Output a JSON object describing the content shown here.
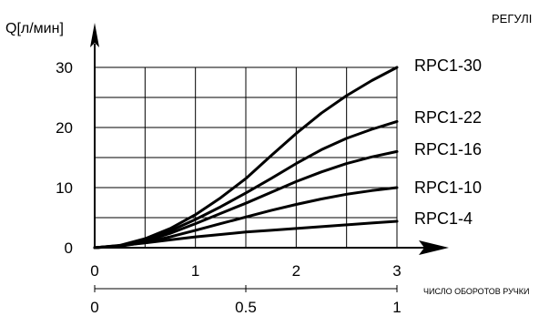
{
  "chart_data": {
    "type": "line",
    "title": "",
    "corner_text": "РЕГУЛІ",
    "ylabel": "Q[л/мин]",
    "xlabel": "ЧИСЛО ОБОРОТОВ РУЧКИ",
    "xlim": [
      0,
      3
    ],
    "ylim": [
      0,
      30
    ],
    "y_ticks": [
      0,
      10,
      20,
      30
    ],
    "x_ticks": [
      0,
      1,
      2,
      3
    ],
    "x2_ticks": [
      {
        "at": 0,
        "label": "0"
      },
      {
        "at": 1.5,
        "label": "0.5"
      },
      {
        "at": 3,
        "label": "1"
      }
    ],
    "grid": true,
    "x_grid": [
      0.5,
      1,
      1.5,
      2,
      2.5,
      3
    ],
    "y_grid": [
      5,
      10,
      15,
      20,
      25,
      30
    ],
    "series": [
      {
        "name": "RPC1-30",
        "x": [
          0,
          0.25,
          0.5,
          0.75,
          1,
          1.25,
          1.5,
          1.75,
          2,
          2.25,
          2.5,
          2.75,
          3
        ],
        "y": [
          0,
          0.4,
          1.5,
          3.2,
          5.5,
          8.3,
          11.5,
          15.3,
          19,
          22.4,
          25.3,
          27.8,
          30
        ]
      },
      {
        "name": "RPC1-22",
        "x": [
          0,
          0.25,
          0.5,
          0.75,
          1,
          1.25,
          1.5,
          1.75,
          2,
          2.25,
          2.5,
          2.75,
          3
        ],
        "y": [
          0,
          0.35,
          1.3,
          2.8,
          4.7,
          6.8,
          9.1,
          11.5,
          14,
          16.3,
          18.2,
          19.7,
          21
        ]
      },
      {
        "name": "RPC1-16",
        "x": [
          0,
          0.25,
          0.5,
          0.75,
          1,
          1.25,
          1.5,
          1.75,
          2,
          2.25,
          2.5,
          2.75,
          3
        ],
        "y": [
          0,
          0.3,
          1.1,
          2.4,
          4,
          5.7,
          7.4,
          9.2,
          11,
          12.6,
          14,
          15.1,
          16
        ]
      },
      {
        "name": "RPC1-10",
        "x": [
          0,
          0.25,
          0.5,
          0.75,
          1,
          1.25,
          1.5,
          1.75,
          2,
          2.25,
          2.5,
          2.75,
          3
        ],
        "y": [
          0,
          0.25,
          0.9,
          1.8,
          2.9,
          4,
          5.1,
          6.2,
          7.2,
          8.1,
          8.9,
          9.5,
          10
        ]
      },
      {
        "name": "RPC1-4",
        "x": [
          0,
          0.25,
          0.5,
          0.75,
          1,
          1.25,
          1.5,
          1.75,
          2,
          2.25,
          2.5,
          2.75,
          3
        ],
        "y": [
          0,
          0.35,
          0.8,
          1.3,
          1.8,
          2.2,
          2.6,
          2.9,
          3.2,
          3.5,
          3.8,
          4.1,
          4.4
        ]
      }
    ]
  }
}
